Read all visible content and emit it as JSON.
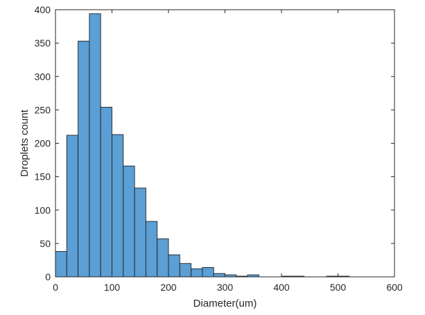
{
  "chart_data": {
    "type": "bar",
    "title": "",
    "xlabel": "Diameter(um)",
    "ylabel": "Droplets count",
    "xlim": [
      0,
      600
    ],
    "ylim": [
      0,
      400
    ],
    "xticks": [
      0,
      100,
      200,
      300,
      400,
      500,
      600
    ],
    "yticks": [
      0,
      50,
      100,
      150,
      200,
      250,
      300,
      350,
      400
    ],
    "bin_width": 20,
    "bin_edges": [
      0,
      20,
      40,
      60,
      80,
      100,
      120,
      140,
      160,
      180,
      200,
      220,
      240,
      260,
      280,
      300,
      320,
      340,
      360,
      380,
      400,
      420,
      440,
      460,
      480,
      500,
      520
    ],
    "values": [
      38,
      212,
      353,
      394,
      254,
      213,
      166,
      133,
      83,
      57,
      33,
      20,
      12,
      14,
      5,
      3,
      1,
      3,
      0,
      0,
      1,
      1,
      0,
      0,
      1,
      1
    ],
    "grid": false,
    "bar_color": "#5b9fd5",
    "edge_color": "#1f1f1f"
  }
}
